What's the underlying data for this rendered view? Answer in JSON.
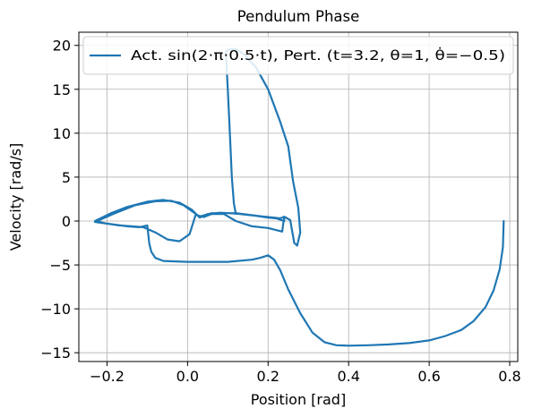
{
  "chart_data": {
    "type": "line",
    "title": "Pendulum Phase",
    "xlabel": "Position [rad]",
    "ylabel": "Velocity [rad/s]",
    "xlim": [
      -0.27,
      0.82
    ],
    "ylim": [
      -16,
      21.5
    ],
    "xticks": [
      -0.2,
      0.0,
      0.2,
      0.4,
      0.6,
      0.8
    ],
    "xtick_labels": [
      "−0.2",
      "0.0",
      "0.2",
      "0.4",
      "0.6",
      "0.8"
    ],
    "yticks": [
      -15,
      -10,
      -5,
      0,
      5,
      10,
      15,
      20
    ],
    "ytick_labels": [
      "−15",
      "−10",
      "−5",
      "0",
      "5",
      "10",
      "15",
      "20"
    ],
    "grid": true,
    "legend_position": "top-right",
    "color": "#1f77b4",
    "series": [
      {
        "name": "Act. sin(2·π·0.5·t), Pert. (t=3.2, θ=1, θ̇=−0.5)",
        "points": [
          [
            0.785,
            0.0
          ],
          [
            0.783,
            -3.0
          ],
          [
            0.775,
            -5.5
          ],
          [
            0.76,
            -7.9
          ],
          [
            0.74,
            -9.8
          ],
          [
            0.71,
            -11.4
          ],
          [
            0.68,
            -12.4
          ],
          [
            0.64,
            -13.1
          ],
          [
            0.6,
            -13.6
          ],
          [
            0.55,
            -13.9
          ],
          [
            0.5,
            -14.05
          ],
          [
            0.45,
            -14.15
          ],
          [
            0.4,
            -14.2
          ],
          [
            0.37,
            -14.15
          ],
          [
            0.34,
            -13.8
          ],
          [
            0.31,
            -12.7
          ],
          [
            0.28,
            -10.5
          ],
          [
            0.25,
            -7.8
          ],
          [
            0.23,
            -5.6
          ],
          [
            0.215,
            -4.4
          ],
          [
            0.2,
            -3.9
          ],
          [
            0.18,
            -4.2
          ],
          [
            0.16,
            -4.4
          ],
          [
            0.1,
            -4.65
          ],
          [
            0.0,
            -4.65
          ],
          [
            -0.06,
            -4.55
          ],
          [
            -0.08,
            -4.2
          ],
          [
            -0.09,
            -3.5
          ],
          [
            -0.095,
            -2.6
          ],
          [
            -0.1,
            -0.5
          ],
          [
            -0.12,
            -0.7
          ],
          [
            -0.15,
            -0.6
          ],
          [
            -0.2,
            -0.3
          ],
          [
            -0.23,
            0.0
          ],
          [
            -0.19,
            0.9
          ],
          [
            -0.15,
            1.6
          ],
          [
            -0.1,
            2.2
          ],
          [
            -0.06,
            2.4
          ],
          [
            -0.02,
            2.1
          ],
          [
            0.01,
            1.3
          ],
          [
            0.03,
            0.4
          ],
          [
            0.05,
            0.8
          ],
          [
            0.08,
            0.95
          ],
          [
            0.12,
            0.85
          ],
          [
            0.17,
            0.6
          ],
          [
            0.2,
            0.4
          ],
          [
            0.22,
            0.3
          ],
          [
            0.24,
            0.0
          ],
          [
            0.24,
            0.5
          ],
          [
            0.235,
            -1.2
          ],
          [
            0.2,
            -0.8
          ],
          [
            0.16,
            -0.6
          ],
          [
            0.12,
            0.0
          ],
          [
            0.09,
            0.8
          ],
          [
            0.06,
            0.8
          ],
          [
            0.04,
            0.45
          ],
          [
            0.02,
            0.7
          ],
          [
            0.005,
            -1.5
          ],
          [
            -0.02,
            -2.3
          ],
          [
            -0.05,
            -2.1
          ],
          [
            -0.08,
            -1.3
          ],
          [
            -0.11,
            -0.7
          ],
          [
            -0.17,
            -0.5
          ],
          [
            -0.23,
            -0.1
          ],
          [
            -0.18,
            0.9
          ],
          [
            -0.13,
            1.8
          ],
          [
            -0.08,
            2.25
          ],
          [
            -0.04,
            2.3
          ],
          [
            -0.01,
            1.8
          ],
          [
            0.03,
            0.5
          ],
          [
            0.06,
            0.9
          ],
          [
            0.12,
            0.9
          ],
          [
            0.18,
            0.55
          ],
          [
            0.23,
            0.3
          ],
          [
            0.24,
            0.5
          ],
          [
            0.255,
            0.1
          ],
          [
            0.265,
            -2.5
          ],
          [
            0.272,
            -2.8
          ],
          [
            0.28,
            -1.3
          ],
          [
            0.275,
            1.5
          ],
          [
            0.262,
            4.5
          ],
          [
            0.25,
            8.5
          ],
          [
            0.23,
            11.3
          ],
          [
            0.2,
            15.0
          ],
          [
            0.17,
            17.5
          ],
          [
            0.14,
            19.0
          ],
          [
            0.12,
            19.6
          ],
          [
            0.1,
            19.5
          ],
          [
            0.095,
            19.2
          ],
          [
            0.097,
            17.5
          ],
          [
            0.1,
            15.0
          ],
          [
            0.105,
            10.0
          ],
          [
            0.11,
            5.0
          ],
          [
            0.115,
            2.0
          ],
          [
            0.12,
            0.8
          ]
        ]
      }
    ]
  }
}
